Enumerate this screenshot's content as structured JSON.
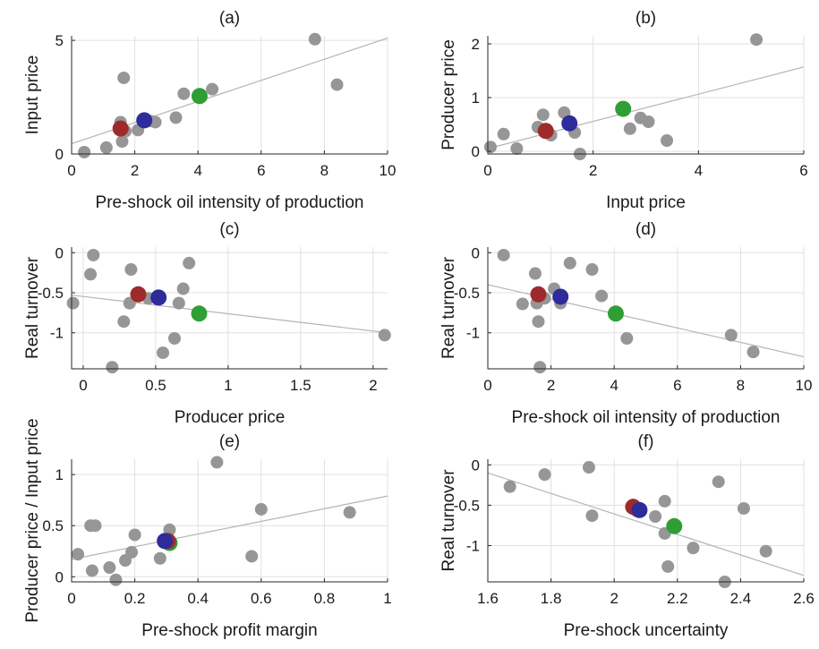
{
  "colors": {
    "other": "#969696",
    "red": "#9e2a2b",
    "blue": "#2e2b9b",
    "green": "#2f9e35",
    "fit": "#b5b5b5"
  },
  "chart_data": [
    {
      "type": "scatter",
      "title": "(a)",
      "xlabel": "Pre-shock oil intensity of production",
      "ylabel": "Input price",
      "xlim": [
        0,
        10
      ],
      "ylim": [
        0,
        5.2
      ],
      "xticks": [
        0,
        2,
        4,
        6,
        8,
        10
      ],
      "xtick_labels": [
        "0",
        "2",
        "4",
        "6",
        "8",
        "10"
      ],
      "yticks": [
        0,
        5
      ],
      "ytick_labels": [
        "0",
        "5"
      ],
      "grid": true,
      "fit_line": [
        [
          0,
          0.45
        ],
        [
          10,
          5.1
        ]
      ],
      "points": [
        [
          0.4,
          0.08
        ],
        [
          1.1,
          0.28
        ],
        [
          1.6,
          0.55
        ],
        [
          1.55,
          1.4
        ],
        [
          1.7,
          1.0
        ],
        [
          1.65,
          3.35
        ],
        [
          2.1,
          1.05
        ],
        [
          2.5,
          1.45
        ],
        [
          2.65,
          1.4
        ],
        [
          3.3,
          1.6
        ],
        [
          3.55,
          2.65
        ],
        [
          4.45,
          2.85
        ],
        [
          7.7,
          5.05
        ],
        [
          8.4,
          3.05
        ]
      ],
      "highlights": [
        {
          "color": "red",
          "x": 1.55,
          "y": 1.12
        },
        {
          "color": "blue",
          "x": 2.3,
          "y": 1.48
        },
        {
          "color": "green",
          "x": 4.05,
          "y": 2.55
        }
      ]
    },
    {
      "type": "scatter",
      "title": "(b)",
      "xlabel": "Input price",
      "ylabel": "Producer price",
      "xlim": [
        0,
        6
      ],
      "ylim": [
        -0.05,
        2.15
      ],
      "xticks": [
        0,
        2,
        4,
        6
      ],
      "xtick_labels": [
        "0",
        "2",
        "4",
        "6"
      ],
      "yticks": [
        0,
        1,
        2
      ],
      "ytick_labels": [
        "0",
        "1",
        "2"
      ],
      "grid": true,
      "fit_line": [
        [
          0,
          0.05
        ],
        [
          6,
          1.57
        ]
      ],
      "points": [
        [
          0.05,
          0.08
        ],
        [
          0.3,
          0.32
        ],
        [
          0.55,
          0.05
        ],
        [
          0.95,
          0.45
        ],
        [
          1.05,
          0.68
        ],
        [
          1.2,
          0.3
        ],
        [
          1.45,
          0.72
        ],
        [
          1.65,
          0.35
        ],
        [
          1.75,
          -0.05
        ],
        [
          2.7,
          0.42
        ],
        [
          2.9,
          0.62
        ],
        [
          3.05,
          0.55
        ],
        [
          3.4,
          0.2
        ],
        [
          5.1,
          2.08
        ]
      ],
      "highlights": [
        {
          "color": "red",
          "x": 1.1,
          "y": 0.38
        },
        {
          "color": "blue",
          "x": 1.55,
          "y": 0.52
        },
        {
          "color": "green",
          "x": 2.57,
          "y": 0.79
        }
      ]
    },
    {
      "type": "scatter",
      "title": "(c)",
      "xlabel": "Producer price",
      "ylabel": "Real turnover",
      "xlim": [
        -0.08,
        2.1
      ],
      "ylim": [
        -1.45,
        0.07
      ],
      "xticks": [
        0,
        0.5,
        1,
        1.5,
        2
      ],
      "xtick_labels": [
        "0",
        "0.5",
        "1",
        "1.5",
        "2"
      ],
      "yticks": [
        -1,
        -0.5,
        0
      ],
      "ytick_labels": [
        "-1",
        "-0.5",
        "0"
      ],
      "grid": true,
      "fit_line": [
        [
          -0.08,
          -0.53
        ],
        [
          2.1,
          -1.0
        ]
      ],
      "points": [
        [
          -0.07,
          -0.63
        ],
        [
          0.05,
          -0.27
        ],
        [
          0.07,
          -0.03
        ],
        [
          0.2,
          -1.43
        ],
        [
          0.28,
          -0.86
        ],
        [
          0.32,
          -0.63
        ],
        [
          0.33,
          -0.21
        ],
        [
          0.45,
          -0.57
        ],
        [
          0.55,
          -1.25
        ],
        [
          0.63,
          -1.07
        ],
        [
          0.66,
          -0.63
        ],
        [
          0.69,
          -0.45
        ],
        [
          0.73,
          -0.13
        ],
        [
          2.08,
          -1.03
        ]
      ],
      "highlights": [
        {
          "color": "red",
          "x": 0.38,
          "y": -0.52
        },
        {
          "color": "blue",
          "x": 0.52,
          "y": -0.56
        },
        {
          "color": "green",
          "x": 0.8,
          "y": -0.76
        }
      ]
    },
    {
      "type": "scatter",
      "title": "(d)",
      "xlabel": "Pre-shock oil intensity of production",
      "ylabel": "Real turnover",
      "xlim": [
        0,
        10
      ],
      "ylim": [
        -1.45,
        0.07
      ],
      "xticks": [
        0,
        2,
        4,
        6,
        8,
        10
      ],
      "xtick_labels": [
        "0",
        "2",
        "4",
        "6",
        "8",
        "10"
      ],
      "yticks": [
        -1,
        -0.5,
        0
      ],
      "ytick_labels": [
        "-1",
        "-0.5",
        "0"
      ],
      "grid": true,
      "fit_line": [
        [
          0,
          -0.4
        ],
        [
          10,
          -1.3
        ]
      ],
      "points": [
        [
          0.5,
          -0.03
        ],
        [
          1.1,
          -0.64
        ],
        [
          1.5,
          -0.26
        ],
        [
          1.55,
          -0.63
        ],
        [
          1.6,
          -0.86
        ],
        [
          1.65,
          -1.43
        ],
        [
          1.8,
          -0.57
        ],
        [
          2.1,
          -0.45
        ],
        [
          2.3,
          -0.63
        ],
        [
          2.6,
          -0.13
        ],
        [
          3.3,
          -0.21
        ],
        [
          3.6,
          -0.54
        ],
        [
          4.4,
          -1.07
        ],
        [
          7.7,
          -1.03
        ],
        [
          8.4,
          -1.24
        ]
      ],
      "highlights": [
        {
          "color": "red",
          "x": 1.6,
          "y": -0.52
        },
        {
          "color": "blue",
          "x": 2.3,
          "y": -0.55
        },
        {
          "color": "green",
          "x": 4.05,
          "y": -0.76
        }
      ]
    },
    {
      "type": "scatter",
      "title": "(e)",
      "xlabel": "Pre-shock profit margin",
      "ylabel": "Producer price / Input price",
      "xlim": [
        0,
        1
      ],
      "ylim": [
        -0.05,
        1.15
      ],
      "xticks": [
        0,
        0.2,
        0.4,
        0.6,
        0.8,
        1
      ],
      "xtick_labels": [
        "0",
        "0.2",
        "0.4",
        "0.6",
        "0.8",
        "1"
      ],
      "yticks": [
        0,
        0.5,
        1
      ],
      "ytick_labels": [
        "0",
        "0.5",
        "1"
      ],
      "grid": true,
      "fit_line": [
        [
          0,
          0.17
        ],
        [
          1,
          0.79
        ]
      ],
      "points": [
        [
          0.02,
          0.22
        ],
        [
          0.06,
          0.5
        ],
        [
          0.065,
          0.06
        ],
        [
          0.075,
          0.5
        ],
        [
          0.12,
          0.09
        ],
        [
          0.14,
          -0.03
        ],
        [
          0.17,
          0.16
        ],
        [
          0.19,
          0.24
        ],
        [
          0.2,
          0.41
        ],
        [
          0.28,
          0.18
        ],
        [
          0.31,
          0.46
        ],
        [
          0.46,
          1.12
        ],
        [
          0.57,
          0.2
        ],
        [
          0.6,
          0.66
        ],
        [
          0.88,
          0.63
        ]
      ],
      "highlights": [
        {
          "color": "green",
          "x": 0.31,
          "y": 0.33
        },
        {
          "color": "red",
          "x": 0.305,
          "y": 0.35
        },
        {
          "color": "blue",
          "x": 0.295,
          "y": 0.35
        }
      ]
    },
    {
      "type": "scatter",
      "title": "(f)",
      "xlabel": "Pre-shock uncertainty",
      "ylabel": "Real turnover",
      "xlim": [
        1.6,
        2.6
      ],
      "ylim": [
        -1.45,
        0.07
      ],
      "xticks": [
        1.6,
        1.8,
        2,
        2.2,
        2.4,
        2.6
      ],
      "xtick_labels": [
        "1.6",
        "1.8",
        "2",
        "2.2",
        "2.4",
        "2.6"
      ],
      "yticks": [
        -1,
        -0.5,
        0
      ],
      "ytick_labels": [
        "-1",
        "-0.5",
        "0"
      ],
      "grid": true,
      "fit_line": [
        [
          1.6,
          -0.1
        ],
        [
          2.6,
          -1.37
        ]
      ],
      "points": [
        [
          1.67,
          -0.27
        ],
        [
          1.78,
          -0.12
        ],
        [
          1.92,
          -0.03
        ],
        [
          1.93,
          -0.63
        ],
        [
          2.07,
          -0.57
        ],
        [
          2.13,
          -0.64
        ],
        [
          2.16,
          -0.45
        ],
        [
          2.16,
          -0.85
        ],
        [
          2.17,
          -1.26
        ],
        [
          2.25,
          -1.03
        ],
        [
          2.33,
          -0.21
        ],
        [
          2.41,
          -0.54
        ],
        [
          2.35,
          -1.45
        ],
        [
          2.48,
          -1.07
        ]
      ],
      "highlights": [
        {
          "color": "red",
          "x": 2.06,
          "y": -0.52
        },
        {
          "color": "blue",
          "x": 2.08,
          "y": -0.56
        },
        {
          "color": "green",
          "x": 2.19,
          "y": -0.76
        }
      ]
    }
  ]
}
